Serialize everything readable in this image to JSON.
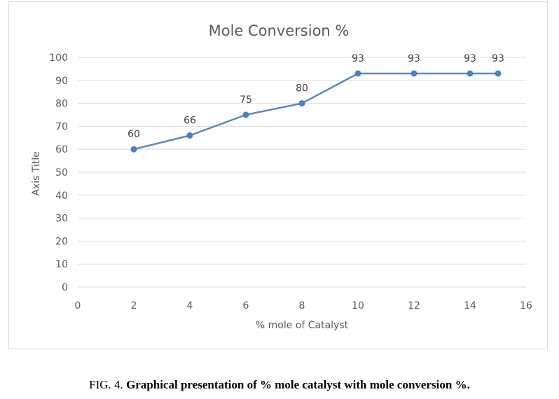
{
  "chart_data": {
    "type": "line",
    "title": "Mole Conversion %",
    "xlabel": "% mole of Catalyst",
    "ylabel": "Axis Title",
    "x": [
      2,
      4,
      6,
      8,
      10,
      12,
      14,
      15
    ],
    "series": [
      {
        "values": [
          60,
          66,
          75,
          80,
          93,
          93,
          93,
          93
        ]
      }
    ],
    "data_labels": [
      "60",
      "66",
      "75",
      "80",
      "93",
      "93",
      "93",
      "93"
    ],
    "xlim": [
      0,
      16
    ],
    "ylim": [
      0,
      100
    ],
    "x_ticks": [
      0,
      2,
      4,
      6,
      8,
      10,
      12,
      14,
      16
    ],
    "y_ticks": [
      0,
      10,
      20,
      30,
      40,
      50,
      60,
      70,
      80,
      90,
      100
    ],
    "grid": "horizontal",
    "legend": "none",
    "line_color": "#5b88bf",
    "marker_color": "#4f7fbf",
    "grid_color": "#d9d9d9"
  },
  "caption": {
    "prefix": "FIG. 4.",
    "text": "Graphical presentation of % mole catalyst with mole conversion %."
  }
}
